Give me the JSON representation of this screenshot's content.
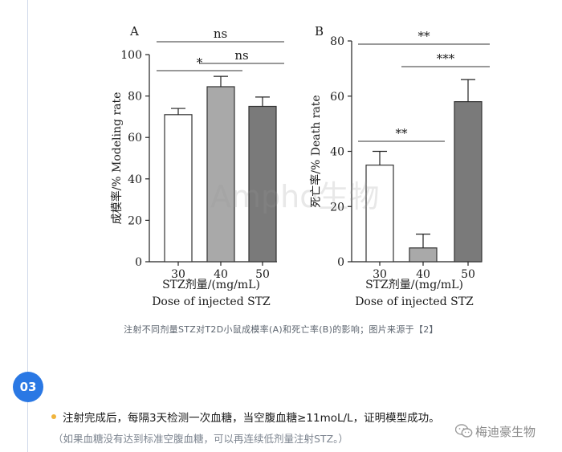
{
  "chart_data": [
    {
      "type": "bar",
      "panel_label": "A",
      "categories": [
        "30",
        "40",
        "50"
      ],
      "values": [
        71,
        84.5,
        75
      ],
      "errors": [
        3,
        5,
        4.5
      ],
      "colors": [
        "#ffffff",
        "#a9a9a9",
        "#7a7a7a"
      ],
      "ylabel": "成模率/% Modeling rate",
      "xlabel": "STZ剂量/(mg/mL)",
      "xlabel2": "Dose of injected STZ",
      "ylim": [
        0,
        100
      ],
      "yticks": [
        0,
        20,
        40,
        60,
        80,
        100
      ],
      "significance": [
        {
          "from": 0,
          "to": 1,
          "label": "*"
        },
        {
          "from": 1,
          "to": 2,
          "label": "ns"
        },
        {
          "from": 0,
          "to": 2,
          "label": "ns"
        }
      ]
    },
    {
      "type": "bar",
      "panel_label": "B",
      "categories": [
        "30",
        "40",
        "50"
      ],
      "values": [
        35,
        5,
        58
      ],
      "errors": [
        5,
        5,
        8
      ],
      "colors": [
        "#ffffff",
        "#a9a9a9",
        "#7a7a7a"
      ],
      "ylabel": "死亡率/% Death rate",
      "xlabel": "STZ剂量/(mg/mL)",
      "xlabel2": "Dose of injected STZ",
      "ylim": [
        0,
        80
      ],
      "yticks": [
        0,
        20,
        40,
        60,
        80
      ],
      "significance": [
        {
          "from": 0,
          "to": 1,
          "label": "**"
        },
        {
          "from": 1,
          "to": 2,
          "label": "***"
        },
        {
          "from": 0,
          "to": 2,
          "label": "**"
        }
      ]
    }
  ],
  "watermark_center": "Ampho生物",
  "caption": "注射不同剂量STZ对T2D小鼠成模率(A)和死亡率(B)的影响；图片来源于【2】",
  "step": {
    "number": "03",
    "text": "注射完成后，每隔3天检测一次血糖，当空腹血糖≥11moL/L，证明模型成功。",
    "note": "（如果血糖没有达到标准空腹血糖，可以再连续低剂量注射STZ。）"
  },
  "watermark": {
    "text": "梅迪豪生物",
    "icon": "wechat-icon"
  },
  "colors": {
    "accent": "#2a78e4",
    "bullet": "#f0b43c"
  }
}
